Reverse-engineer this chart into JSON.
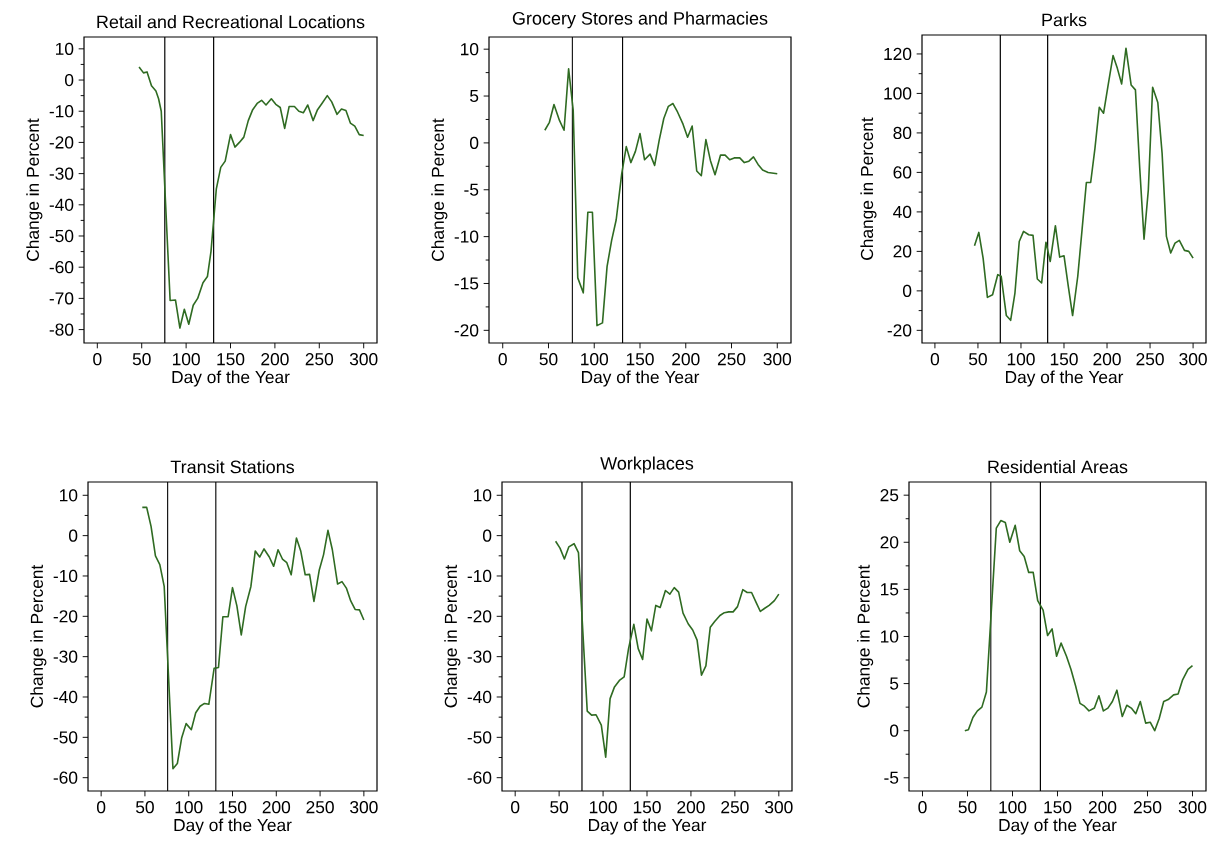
{
  "chart_data": [
    {
      "type": "line",
      "title": "Retail and Recreational Locations",
      "xlabel": "Day of the Year",
      "ylabel": "Change in Percent",
      "color": "#2f6b22",
      "x": [
        47,
        52,
        56,
        61,
        66,
        69,
        72,
        82,
        88,
        93,
        98,
        103,
        108,
        113,
        119,
        124,
        128,
        134,
        139,
        144,
        150,
        155,
        160,
        165,
        170,
        175,
        180,
        185,
        190,
        196,
        201,
        206,
        211,
        216,
        222,
        227,
        232,
        237,
        243,
        248,
        253,
        259,
        264,
        270,
        275,
        280,
        285,
        290,
        295,
        300
      ],
      "values": [
        4.2,
        2.3,
        2.6,
        -1.8,
        -3.5,
        -6,
        -10,
        -70.7,
        -70.5,
        -79.5,
        -73.5,
        -78.3,
        -72.2,
        -70,
        -65,
        -63,
        -55,
        -35,
        -28,
        -26,
        -17.5,
        -21.5,
        -20,
        -18.3,
        -13,
        -9.5,
        -7.5,
        -6.5,
        -8,
        -6,
        -7.8,
        -8.8,
        -15.5,
        -8.5,
        -8.5,
        -10,
        -10.5,
        -8,
        -13,
        -9.5,
        -7.5,
        -5,
        -7,
        -11,
        -9.3,
        -9.8,
        -13.8,
        -14.8,
        -17.5,
        -17.8
      ],
      "xlim": [
        -15,
        315
      ],
      "ylim": [
        -84.3,
        13.8
      ],
      "xticks": [
        0,
        50,
        100,
        150,
        200,
        250,
        300
      ],
      "yticks": [
        -80,
        -70,
        -60,
        -50,
        -40,
        -30,
        -20,
        -10,
        0,
        10
      ],
      "ref_lines": [
        {
          "axis": "x",
          "value": 76,
          "color": "#000000"
        },
        {
          "axis": "x",
          "value": 131,
          "color": "#000000"
        }
      ]
    },
    {
      "type": "line",
      "title": "Grocery Stores and Pharmacies",
      "xlabel": "Day of the Year",
      "ylabel": "Change in Percent",
      "color": "#2f6b22",
      "x": [
        46,
        51,
        56,
        62,
        67,
        72,
        77,
        82,
        88,
        93,
        98,
        103,
        109,
        114,
        119,
        124,
        130,
        135,
        140,
        145,
        150,
        155,
        161,
        166,
        171,
        176,
        181,
        186,
        191,
        197,
        202,
        207,
        212,
        217,
        222,
        227,
        232,
        238,
        243,
        248,
        253,
        259,
        264,
        269,
        274,
        279,
        284,
        290,
        300
      ],
      "values": [
        1.35,
        2.2,
        4.1,
        2.4,
        1.35,
        7.9,
        3.5,
        -14.4,
        -16,
        -7.4,
        -7.4,
        -19.5,
        -19.2,
        -13.2,
        -10.4,
        -8.2,
        -3.3,
        -0.4,
        -2.1,
        -0.9,
        1,
        -1.8,
        -1.2,
        -2.4,
        0.3,
        2.6,
        3.9,
        4.2,
        3.3,
        2,
        0.6,
        1.8,
        -3,
        -3.5,
        0.35,
        -1.9,
        -3.4,
        -1.3,
        -1.3,
        -1.8,
        -1.6,
        -1.6,
        -2.1,
        -1.95,
        -1.5,
        -2.3,
        -2.9,
        -3.15,
        -3.3
      ],
      "xlim": [
        -15,
        315
      ],
      "ylim": [
        -21.35,
        11.3
      ],
      "xticks": [
        0,
        50,
        100,
        150,
        200,
        250,
        300
      ],
      "yticks": [
        -20,
        -15,
        -10,
        -5,
        0,
        5,
        10
      ],
      "ref_lines": [
        {
          "axis": "x",
          "value": 76,
          "color": "#000000"
        },
        {
          "axis": "x",
          "value": 131,
          "color": "#000000"
        }
      ]
    },
    {
      "type": "line",
      "title": "Parks",
      "xlabel": "Day of the Year",
      "ylabel": "Change in Percent",
      "color": "#2f6b22",
      "x": [
        46,
        51,
        56,
        61,
        67,
        73,
        77,
        83,
        88,
        93,
        98,
        103,
        109,
        114,
        119,
        124,
        129,
        134,
        140,
        145,
        150,
        155,
        160,
        166,
        171,
        176,
        181,
        186,
        191,
        196,
        201,
        207,
        212,
        217,
        222,
        228,
        233,
        238,
        243,
        248,
        253,
        259,
        264,
        269,
        274,
        279,
        284,
        290,
        295,
        300
      ],
      "values": [
        22.9,
        29.6,
        16.6,
        -3.3,
        -2,
        8.2,
        7.4,
        -12.5,
        -14.9,
        -1.1,
        25,
        30.1,
        28.4,
        28.1,
        6,
        4,
        24.6,
        14.9,
        33,
        17.1,
        17.8,
        2.3,
        -12.5,
        7.4,
        31,
        54.9,
        54.9,
        72.3,
        93,
        90,
        103.5,
        119.2,
        112.7,
        104.8,
        122.9,
        104.3,
        101.8,
        62.2,
        26.2,
        51.2,
        103.1,
        95.4,
        69.7,
        27.6,
        19.2,
        24.2,
        25.6,
        20.5,
        20,
        16.6
      ],
      "xlim": [
        -15,
        315
      ],
      "ylim": [
        -26.4,
        129.6
      ],
      "xticks": [
        0,
        50,
        100,
        150,
        200,
        250,
        300
      ],
      "yticks": [
        -20,
        0,
        20,
        40,
        60,
        80,
        100,
        120
      ],
      "ref_lines": [
        {
          "axis": "x",
          "value": 76,
          "color": "#000000"
        },
        {
          "axis": "x",
          "value": 131,
          "color": "#000000"
        }
      ]
    },
    {
      "type": "line",
      "title": "Transit Stations",
      "xlabel": "Day of the Year",
      "ylabel": "Change in Percent",
      "color": "#2f6b22",
      "x": [
        47,
        52,
        57,
        62,
        67,
        72,
        82,
        87,
        92,
        97,
        103,
        108,
        113,
        118,
        123,
        129,
        134,
        139,
        145,
        150,
        155,
        160,
        165,
        171,
        176,
        181,
        186,
        192,
        197,
        202,
        207,
        212,
        217,
        223,
        228,
        233,
        238,
        243,
        249,
        254,
        259,
        264,
        270,
        275,
        280,
        285,
        290,
        295,
        300
      ],
      "values": [
        7,
        7,
        2.3,
        -5,
        -7.2,
        -12.6,
        -57.8,
        -56.5,
        -50.1,
        -46.6,
        -48.1,
        -43.9,
        -42.3,
        -41.6,
        -41.8,
        -32.9,
        -32.7,
        -20.1,
        -20.1,
        -12.9,
        -17.4,
        -24.6,
        -17.6,
        -12.6,
        -3.8,
        -5.3,
        -3.3,
        -5.3,
        -7.6,
        -3.5,
        -5.8,
        -6.7,
        -9.7,
        -0.6,
        -3.9,
        -9.7,
        -9.6,
        -16.3,
        -8.6,
        -4.7,
        1.3,
        -3.5,
        -12,
        -11.4,
        -13,
        -16.2,
        -18.3,
        -18.4,
        -20.9
      ],
      "xlim": [
        -15,
        315
      ],
      "ylim": [
        -63.3,
        13.3
      ],
      "xticks": [
        0,
        50,
        100,
        150,
        200,
        250,
        300
      ],
      "yticks": [
        -60,
        -50,
        -40,
        -30,
        -20,
        -10,
        0,
        10
      ],
      "ref_lines": [
        {
          "axis": "x",
          "value": 76,
          "color": "#000000"
        },
        {
          "axis": "x",
          "value": 131,
          "color": "#000000"
        }
      ]
    },
    {
      "type": "line",
      "title": "Workplaces",
      "xlabel": "Day of the Year",
      "ylabel": "Change in Percent",
      "color": "#2f6b22",
      "x": [
        46,
        51,
        56,
        61,
        67,
        72,
        82,
        87,
        92,
        98,
        103,
        108,
        113,
        119,
        124,
        129,
        135,
        140,
        145,
        150,
        155,
        160,
        165,
        171,
        176,
        181,
        186,
        191,
        197,
        202,
        207,
        212,
        217,
        222,
        227,
        233,
        238,
        243,
        248,
        253,
        259,
        264,
        269,
        274,
        279,
        284,
        289,
        295,
        300
      ],
      "values": [
        -1.4,
        -3.1,
        -5.8,
        -2.8,
        -2,
        -4.2,
        -43.5,
        -44.5,
        -44.4,
        -47,
        -54.9,
        -40.4,
        -37.5,
        -35.8,
        -35,
        -28,
        -22,
        -28,
        -30.7,
        -20.7,
        -23.6,
        -17.3,
        -17.8,
        -13.6,
        -14.5,
        -12.9,
        -14,
        -19.2,
        -21.9,
        -23.4,
        -25.9,
        -34.6,
        -32.3,
        -22.7,
        -21.3,
        -19.8,
        -19.1,
        -18.9,
        -18.9,
        -17.6,
        -13.4,
        -14.1,
        -14.1,
        -16.5,
        -18.8,
        -18,
        -17.3,
        -16.1,
        -14.5
      ],
      "xlim": [
        -15,
        315
      ],
      "ylim": [
        -63.3,
        13.3
      ],
      "xticks": [
        0,
        50,
        100,
        150,
        200,
        250,
        300
      ],
      "yticks": [
        -60,
        -50,
        -40,
        -30,
        -20,
        -10,
        0,
        10
      ],
      "ref_lines": [
        {
          "axis": "x",
          "value": 76,
          "color": "#000000"
        },
        {
          "axis": "x",
          "value": 131,
          "color": "#000000"
        }
      ]
    },
    {
      "type": "line",
      "title": "Residential Areas",
      "xlabel": "Day of the Year",
      "ylabel": "Change in Percent",
      "color": "#2f6b22",
      "x": [
        47,
        51,
        56,
        61,
        66,
        71,
        82,
        87,
        92,
        97,
        103,
        108,
        113,
        118,
        123,
        128,
        134,
        139,
        144,
        149,
        154,
        160,
        165,
        170,
        175,
        180,
        185,
        191,
        196,
        201,
        206,
        211,
        216,
        222,
        227,
        232,
        237,
        242,
        248,
        253,
        258,
        263,
        268,
        273,
        279,
        284,
        289,
        295,
        300
      ],
      "values": [
        0,
        0.1,
        1.4,
        2.1,
        2.5,
        4.1,
        21.5,
        22.3,
        22.1,
        20,
        21.8,
        19.1,
        18.5,
        16.8,
        16.8,
        13.8,
        12.8,
        10.1,
        10.8,
        7.9,
        9.3,
        7.9,
        6.5,
        4.8,
        2.9,
        2.6,
        2.1,
        2.4,
        3.7,
        2.1,
        2.4,
        3.1,
        4.3,
        1.5,
        2.7,
        2.4,
        1.8,
        3.1,
        0.8,
        0.9,
        0,
        1.3,
        3.1,
        3.3,
        3.8,
        3.9,
        5.4,
        6.5,
        6.9
      ],
      "xlim": [
        -15,
        315
      ],
      "ylim": [
        -6.4,
        26.4
      ],
      "xticks": [
        0,
        50,
        100,
        150,
        200,
        250,
        300
      ],
      "yticks": [
        -5,
        0,
        5,
        10,
        15,
        20,
        25
      ],
      "ref_lines": [
        {
          "axis": "x",
          "value": 76,
          "color": "#000000"
        },
        {
          "axis": "x",
          "value": 131,
          "color": "#000000"
        }
      ]
    }
  ]
}
